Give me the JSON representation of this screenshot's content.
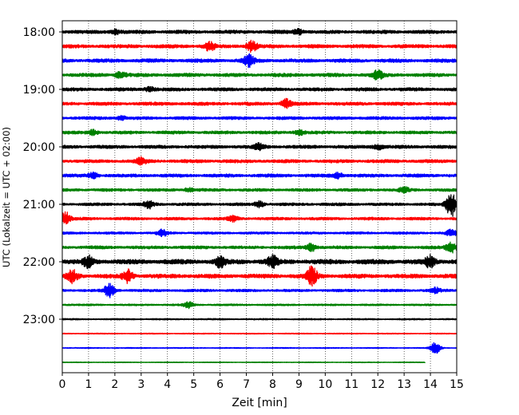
{
  "chart_data": {
    "type": "line",
    "title": "",
    "xlabel": "Zeit  [min]",
    "ylabel": "UTC (Lokalzeit = UTC + 02:00)",
    "xlim": [
      0,
      15
    ],
    "x_ticks": [
      0,
      1,
      2,
      3,
      4,
      5,
      6,
      7,
      8,
      9,
      10,
      11,
      12,
      13,
      14,
      15
    ],
    "y_ticks": [
      {
        "label": "18:00",
        "row": 0
      },
      {
        "label": "19:00",
        "row": 4
      },
      {
        "label": "20:00",
        "row": 8
      },
      {
        "label": "21:00",
        "row": 12
      },
      {
        "label": "22:00",
        "row": 16
      },
      {
        "label": "23:00",
        "row": 20
      }
    ],
    "grid": "vertical-dotted",
    "row_minutes": 15,
    "color_cycle": [
      "#000000",
      "#ff0000",
      "#0000ff",
      "#008000"
    ],
    "traces": [
      {
        "start": "18:00",
        "color": "#000000",
        "amp": 0.3,
        "end_min": 15,
        "events": [
          {
            "t": 2.0,
            "a": 0.5
          },
          {
            "t": 9.0,
            "a": 0.5
          }
        ]
      },
      {
        "start": "18:15",
        "color": "#ff0000",
        "amp": 0.3,
        "end_min": 15,
        "events": [
          {
            "t": 5.6,
            "a": 0.7
          },
          {
            "t": 7.2,
            "a": 1.0
          }
        ]
      },
      {
        "start": "18:30",
        "color": "#0000ff",
        "amp": 0.3,
        "end_min": 15,
        "events": [
          {
            "t": 7.1,
            "a": 0.9
          }
        ]
      },
      {
        "start": "18:45",
        "color": "#008000",
        "amp": 0.3,
        "end_min": 15,
        "events": [
          {
            "t": 2.2,
            "a": 0.6
          },
          {
            "t": 12.0,
            "a": 0.7
          }
        ]
      },
      {
        "start": "19:00",
        "color": "#000000",
        "amp": 0.28,
        "end_min": 15,
        "events": [
          {
            "t": 3.3,
            "a": 0.5
          }
        ]
      },
      {
        "start": "19:15",
        "color": "#ff0000",
        "amp": 0.28,
        "end_min": 15,
        "events": [
          {
            "t": 8.5,
            "a": 0.8
          }
        ]
      },
      {
        "start": "19:30",
        "color": "#0000ff",
        "amp": 0.26,
        "end_min": 15,
        "events": [
          {
            "t": 2.2,
            "a": 0.4
          }
        ]
      },
      {
        "start": "19:45",
        "color": "#008000",
        "amp": 0.26,
        "end_min": 15,
        "events": [
          {
            "t": 1.2,
            "a": 0.5
          },
          {
            "t": 9.0,
            "a": 0.5
          }
        ]
      },
      {
        "start": "20:00",
        "color": "#000000",
        "amp": 0.28,
        "end_min": 15,
        "events": [
          {
            "t": 12.0,
            "a": 0.6
          },
          {
            "t": 7.5,
            "a": 0.5
          }
        ]
      },
      {
        "start": "20:15",
        "color": "#ff0000",
        "amp": 0.28,
        "end_min": 15,
        "events": [
          {
            "t": 3.0,
            "a": 0.5
          }
        ]
      },
      {
        "start": "20:30",
        "color": "#0000ff",
        "amp": 0.28,
        "end_min": 15,
        "events": [
          {
            "t": 1.2,
            "a": 0.5
          },
          {
            "t": 10.5,
            "a": 0.5
          }
        ]
      },
      {
        "start": "20:45",
        "color": "#008000",
        "amp": 0.24,
        "end_min": 15,
        "events": [
          {
            "t": 4.8,
            "a": 0.4
          },
          {
            "t": 13.0,
            "a": 0.4
          }
        ]
      },
      {
        "start": "21:00",
        "color": "#000000",
        "amp": 0.24,
        "end_min": 15,
        "events": [
          {
            "t": 3.3,
            "a": 0.6
          },
          {
            "t": 7.5,
            "a": 0.6
          },
          {
            "t": 14.8,
            "a": 2.6
          }
        ]
      },
      {
        "start": "21:15",
        "color": "#ff0000",
        "amp": 0.24,
        "end_min": 15,
        "events": [
          {
            "t": 0.1,
            "a": 1.3
          },
          {
            "t": 6.5,
            "a": 0.4
          }
        ]
      },
      {
        "start": "21:30",
        "color": "#0000ff",
        "amp": 0.2,
        "end_min": 15,
        "events": [
          {
            "t": 3.8,
            "a": 0.5
          },
          {
            "t": 14.8,
            "a": 0.5
          }
        ]
      },
      {
        "start": "21:45",
        "color": "#008000",
        "amp": 0.26,
        "end_min": 15,
        "events": [
          {
            "t": 9.5,
            "a": 0.9
          },
          {
            "t": 14.8,
            "a": 1.0
          }
        ]
      },
      {
        "start": "22:00",
        "color": "#000000",
        "amp": 0.4,
        "end_min": 15,
        "events": [
          {
            "t": 1.0,
            "a": 0.9
          },
          {
            "t": 6.0,
            "a": 0.8
          },
          {
            "t": 8.0,
            "a": 0.9
          },
          {
            "t": 14.0,
            "a": 0.9
          }
        ]
      },
      {
        "start": "22:15",
        "color": "#ff0000",
        "amp": 0.35,
        "end_min": 15,
        "events": [
          {
            "t": 0.4,
            "a": 1.0
          },
          {
            "t": 2.5,
            "a": 1.1
          },
          {
            "t": 9.5,
            "a": 1.6
          }
        ]
      },
      {
        "start": "22:30",
        "color": "#0000ff",
        "amp": 0.22,
        "end_min": 15,
        "events": [
          {
            "t": 1.8,
            "a": 1.2
          },
          {
            "t": 14.2,
            "a": 0.4
          }
        ]
      },
      {
        "start": "22:45",
        "color": "#008000",
        "amp": 0.15,
        "end_min": 15,
        "events": [
          {
            "t": 4.8,
            "a": 0.5
          }
        ]
      },
      {
        "start": "23:00",
        "color": "#000000",
        "amp": 0.12,
        "end_min": 15,
        "events": []
      },
      {
        "start": "23:15",
        "color": "#ff0000",
        "amp": 0.08,
        "end_min": 15,
        "events": []
      },
      {
        "start": "23:30",
        "color": "#0000ff",
        "amp": 0.08,
        "end_min": 15,
        "events": [
          {
            "t": 14.2,
            "a": 1.0
          }
        ]
      },
      {
        "start": "23:45",
        "color": "#008000",
        "amp": 0.06,
        "end_min": 13.8,
        "events": []
      }
    ]
  }
}
